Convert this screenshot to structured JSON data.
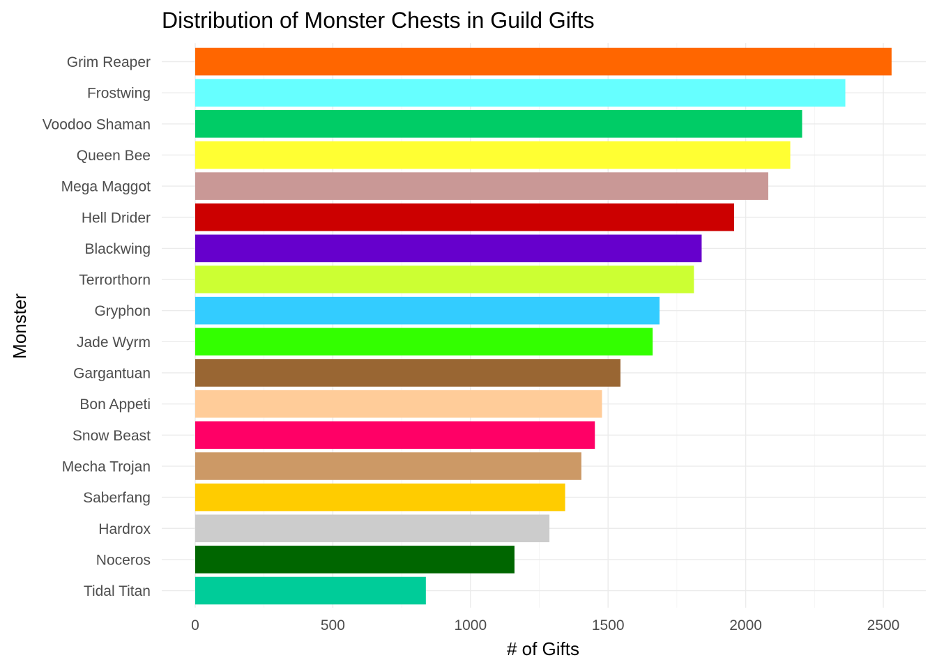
{
  "chart_data": {
    "type": "bar",
    "orientation": "horizontal",
    "title": "Distribution of Monster Chests in Guild Gifts",
    "xlabel": "# of Gifts",
    "ylabel": "Monster",
    "xlim": [
      0,
      2530
    ],
    "x_ticks": [
      0,
      500,
      1000,
      1500,
      2000,
      2500
    ],
    "x_tick_labels": [
      "0",
      "500",
      "1000",
      "1500",
      "2000",
      "2500"
    ],
    "grid": true,
    "legend": "none",
    "categories": [
      "Grim Reaper",
      "Frostwing",
      "Voodoo Shaman",
      "Queen Bee",
      "Mega Maggot",
      "Hell Drider",
      "Blackwing",
      "Terrorthorn",
      "Gryphon",
      "Jade Wyrm",
      "Gargantuan",
      "Bon Appeti",
      "Snow Beast",
      "Mecha Trojan",
      "Saberfang",
      "Hardrox",
      "Noceros",
      "Tidal Titan"
    ],
    "values": [
      2530,
      2362,
      2205,
      2162,
      2082,
      1958,
      1840,
      1812,
      1687,
      1662,
      1545,
      1478,
      1452,
      1403,
      1344,
      1287,
      1160,
      838
    ],
    "colors": [
      "#ff6600",
      "#66ffff",
      "#00cc66",
      "#ffff33",
      "#c99896",
      "#cc0000",
      "#6600cc",
      "#ccff33",
      "#33ccff",
      "#33ff00",
      "#996633",
      "#ffcc99",
      "#ff0066",
      "#cc9966",
      "#ffcc00",
      "#cccccc",
      "#006600",
      "#00cc99"
    ]
  }
}
